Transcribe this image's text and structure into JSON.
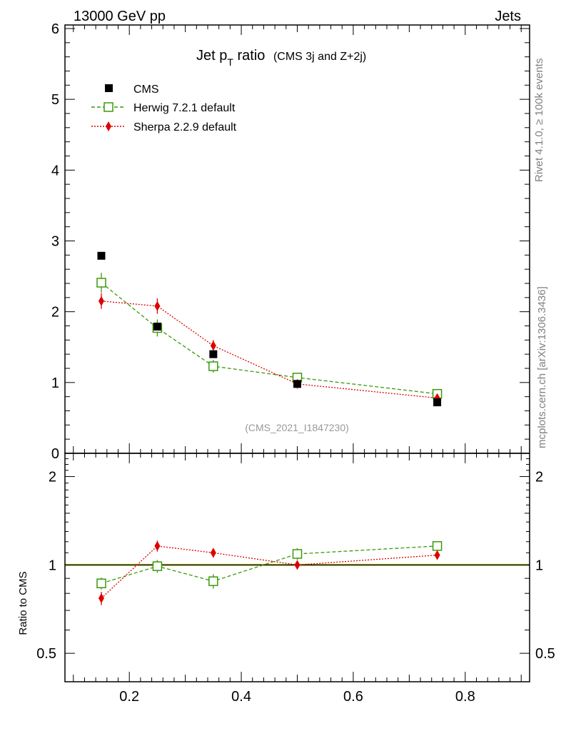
{
  "header": {
    "left": "13000 GeV pp",
    "right": "Jets"
  },
  "side_labels": {
    "rivet": "Rivet 4.1.0, ≥ 100k events",
    "mcplots": "mcplots.cern.ch [arXiv:1306.3436]"
  },
  "chart_data": {
    "type": "scatter",
    "title_main": "Jet p",
    "title_sub": "T",
    "title_rest": " ratio",
    "title_small": "(CMS 3j and Z+2j)",
    "watermark": "(CMS_2021_I1847230)",
    "xlim": [
      0.085,
      0.915
    ],
    "ylim_main": [
      0,
      6.05
    ],
    "main_yticks": [
      "0",
      "1",
      "2",
      "3",
      "4",
      "5",
      "6"
    ],
    "xticks": [
      "0.2",
      "0.4",
      "0.6",
      "0.8"
    ],
    "ratio_ylabel": "Ratio to CMS",
    "ratio_ylim_log": [
      0.4,
      2.4
    ],
    "ratio_yticks": [
      "0.5",
      "1",
      "2"
    ],
    "x": [
      0.15,
      0.25,
      0.35,
      0.5,
      0.75
    ],
    "series": [
      {
        "name": "CMS",
        "color": "#000000",
        "marker": "square-filled",
        "values": [
          2.79,
          1.79,
          1.4,
          0.98,
          0.72
        ],
        "errors": [
          0.03,
          0.03,
          0.03,
          0.02,
          0.02
        ],
        "ratio": [
          1,
          1,
          1,
          1,
          1
        ],
        "ratio_errors": [
          0.01,
          0.01,
          0.01,
          0.01,
          0.01
        ]
      },
      {
        "name": "Herwig 7.2.1 default",
        "color": "#3a9a0a",
        "marker": "square-open",
        "line": "dashed",
        "values": [
          2.41,
          1.77,
          1.23,
          1.07,
          0.84
        ],
        "errors": [
          0.14,
          0.12,
          0.09,
          0.05,
          0.03
        ],
        "ratio": [
          0.865,
          0.99,
          0.88,
          1.09,
          1.16
        ],
        "ratio_errors": [
          0.04,
          0.05,
          0.05,
          0.05,
          0.04
        ]
      },
      {
        "name": "Sherpa 2.2.9 default",
        "color": "#dd0000",
        "marker": "diamond",
        "line": "dotted",
        "values": [
          2.15,
          2.08,
          1.52,
          0.98,
          0.78
        ],
        "errors": [
          0.11,
          0.11,
          0.08,
          0.04,
          0.03
        ],
        "ratio": [
          0.77,
          1.16,
          1.1,
          1.0,
          1.08
        ],
        "ratio_errors": [
          0.04,
          0.05,
          0.04,
          0.03,
          0.03
        ]
      }
    ]
  }
}
